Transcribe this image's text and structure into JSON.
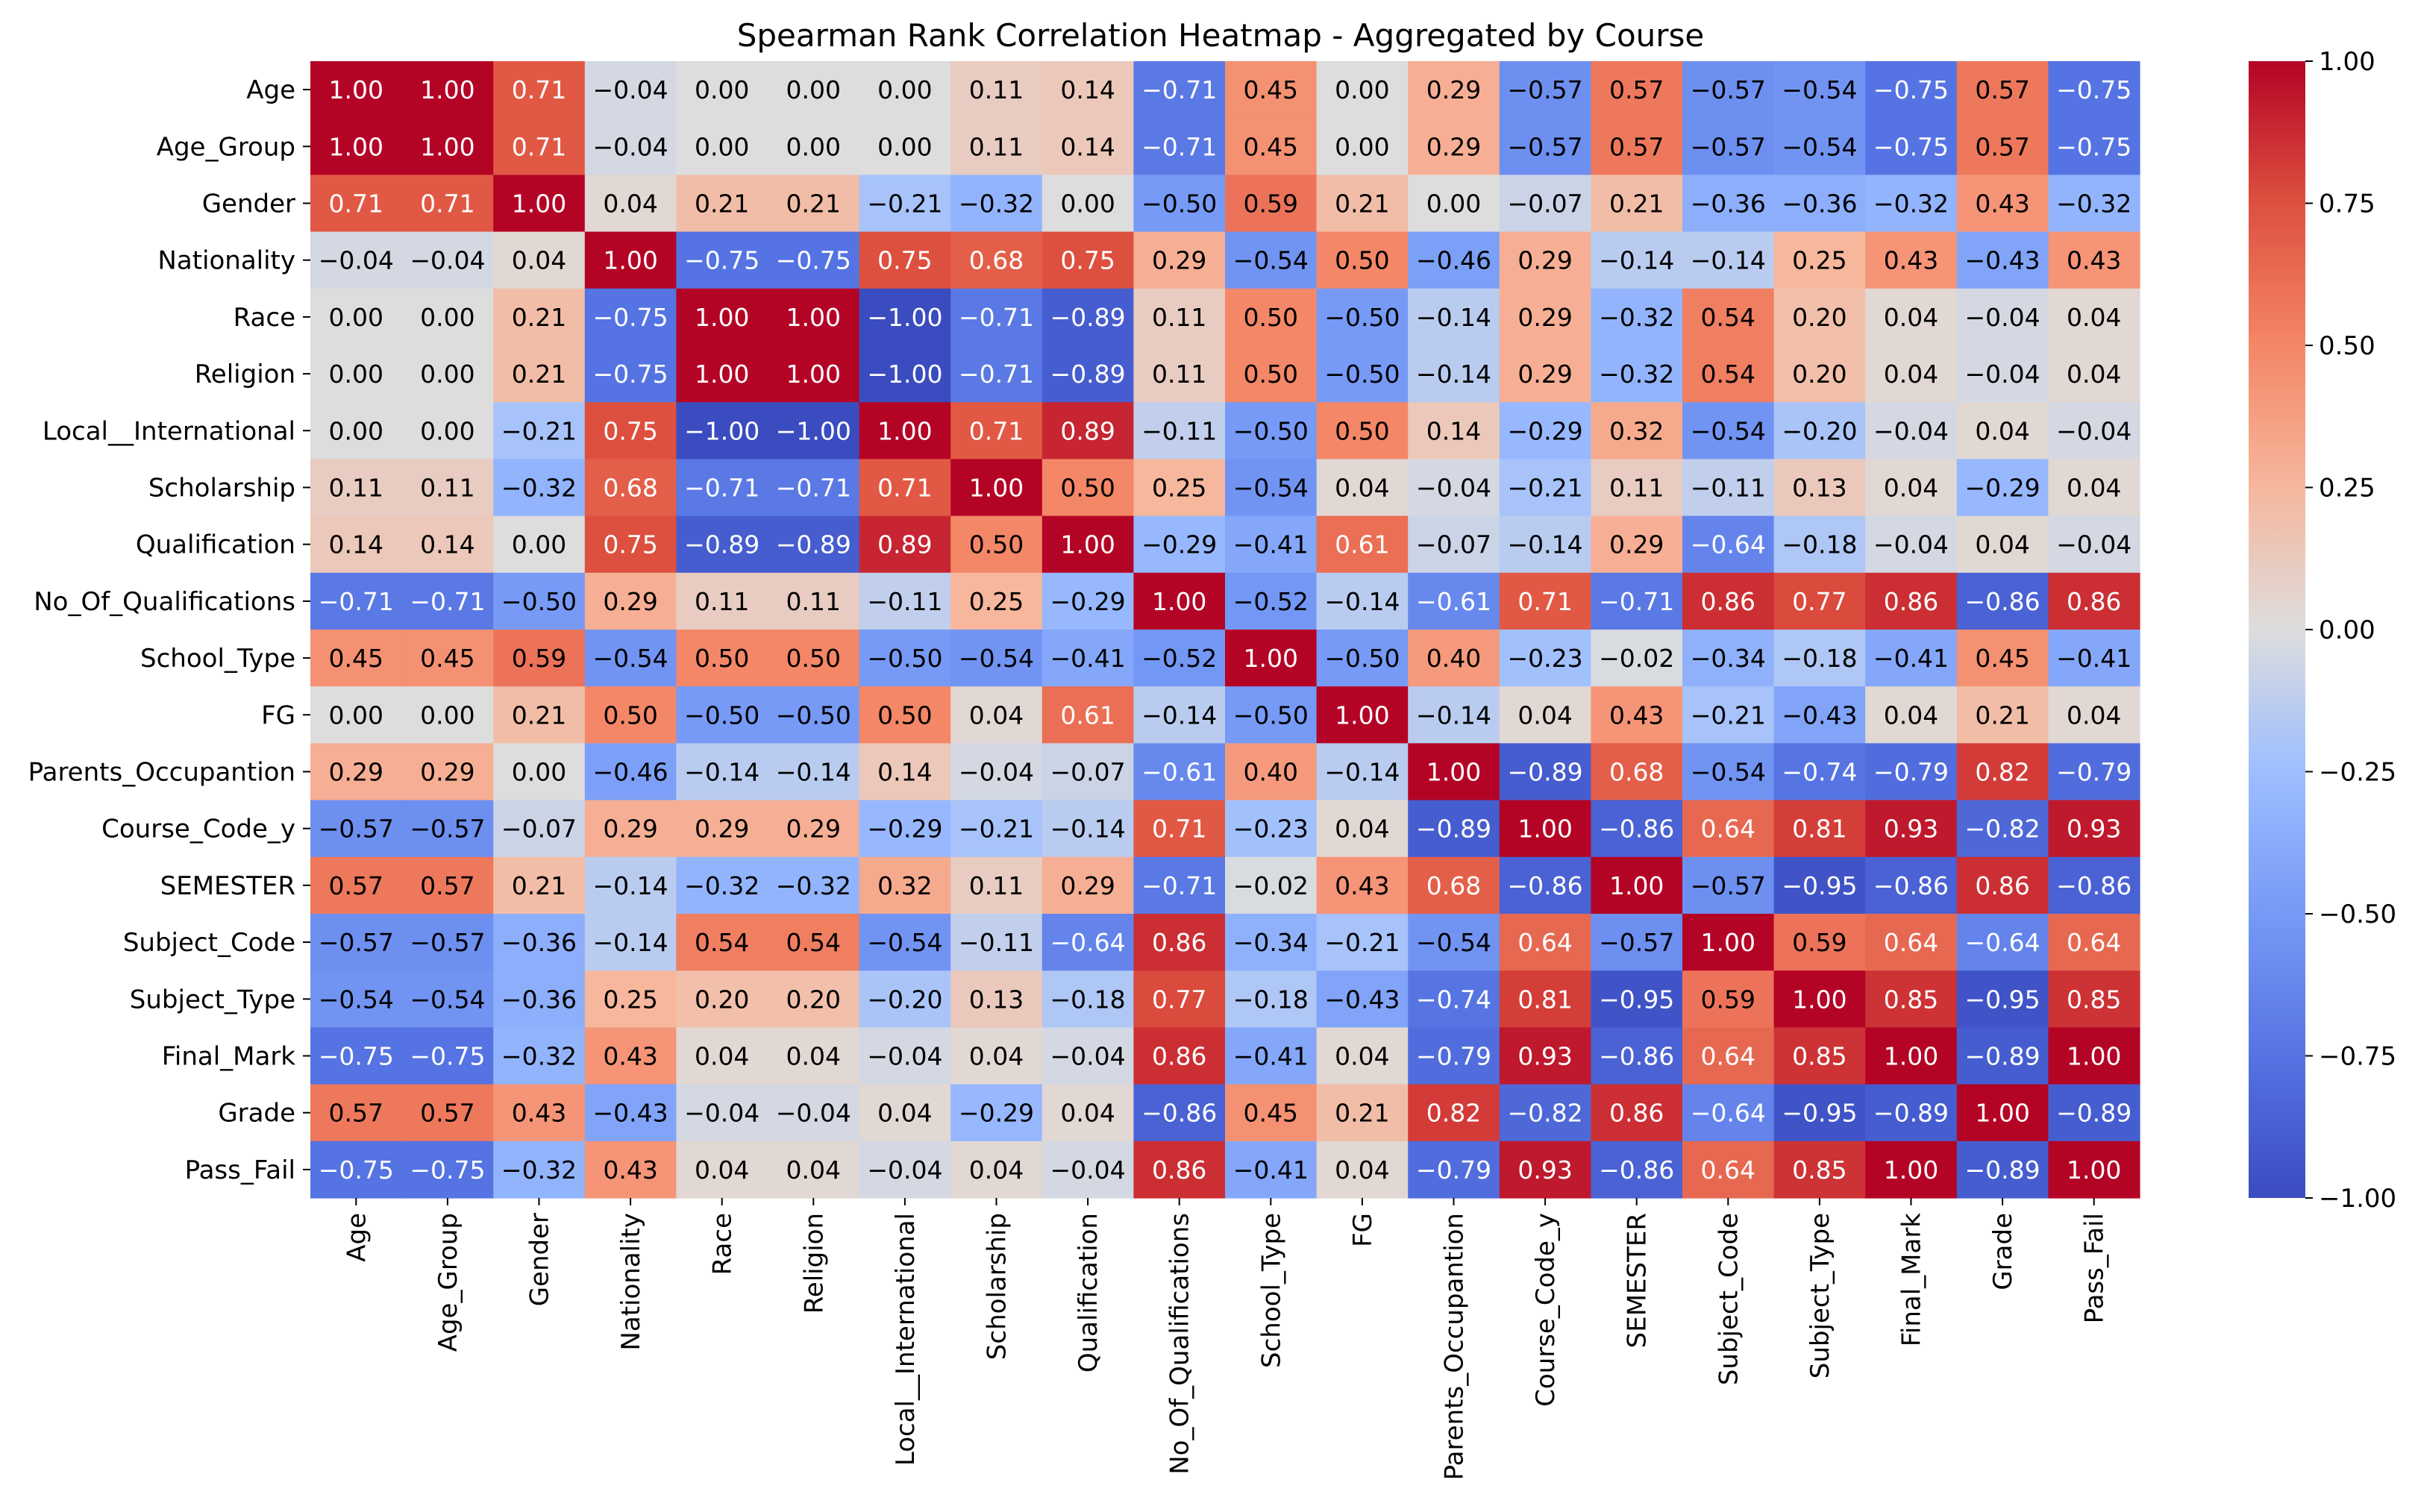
{
  "chart_data": {
    "type": "heatmap",
    "title": "Spearman Rank Correlation Heatmap - Aggregated by Course",
    "labels": [
      "Age",
      "Age_Group",
      "Gender",
      "Nationality",
      "Race",
      "Religion",
      "Local__International",
      "Scholarship",
      "Qualification",
      "No_Of_Qualifications",
      "School_Type",
      "FG",
      "Parents_Occupantion",
      "Course_Code_y",
      "SEMESTER",
      "Subject_Code",
      "Subject_Type",
      "Final_Mark",
      "Grade",
      "Pass_Fail"
    ],
    "matrix": [
      [
        1.0,
        1.0,
        0.71,
        -0.04,
        0.0,
        0.0,
        0.0,
        0.11,
        0.14,
        -0.71,
        0.45,
        0.0,
        0.29,
        -0.57,
        0.57,
        -0.57,
        -0.54,
        -0.75,
        0.57,
        -0.75
      ],
      [
        1.0,
        1.0,
        0.71,
        -0.04,
        0.0,
        0.0,
        0.0,
        0.11,
        0.14,
        -0.71,
        0.45,
        0.0,
        0.29,
        -0.57,
        0.57,
        -0.57,
        -0.54,
        -0.75,
        0.57,
        -0.75
      ],
      [
        0.71,
        0.71,
        1.0,
        0.04,
        0.21,
        0.21,
        -0.21,
        -0.32,
        0.0,
        -0.5,
        0.59,
        0.21,
        0.0,
        -0.07,
        0.21,
        -0.36,
        -0.36,
        -0.32,
        0.43,
        -0.32
      ],
      [
        -0.04,
        -0.04,
        0.04,
        1.0,
        -0.75,
        -0.75,
        0.75,
        0.68,
        0.75,
        0.29,
        -0.54,
        0.5,
        -0.46,
        0.29,
        -0.14,
        -0.14,
        0.25,
        0.43,
        -0.43,
        0.43
      ],
      [
        0.0,
        0.0,
        0.21,
        -0.75,
        1.0,
        1.0,
        -1.0,
        -0.71,
        -0.89,
        0.11,
        0.5,
        -0.5,
        -0.14,
        0.29,
        -0.32,
        0.54,
        0.2,
        0.04,
        -0.04,
        0.04
      ],
      [
        0.0,
        0.0,
        0.21,
        -0.75,
        1.0,
        1.0,
        -1.0,
        -0.71,
        -0.89,
        0.11,
        0.5,
        -0.5,
        -0.14,
        0.29,
        -0.32,
        0.54,
        0.2,
        0.04,
        -0.04,
        0.04
      ],
      [
        0.0,
        0.0,
        -0.21,
        0.75,
        -1.0,
        -1.0,
        1.0,
        0.71,
        0.89,
        -0.11,
        -0.5,
        0.5,
        0.14,
        -0.29,
        0.32,
        -0.54,
        -0.2,
        -0.04,
        0.04,
        -0.04
      ],
      [
        0.11,
        0.11,
        -0.32,
        0.68,
        -0.71,
        -0.71,
        0.71,
        1.0,
        0.5,
        0.25,
        -0.54,
        0.04,
        -0.04,
        -0.21,
        0.11,
        -0.11,
        0.13,
        0.04,
        -0.29,
        0.04
      ],
      [
        0.14,
        0.14,
        0.0,
        0.75,
        -0.89,
        -0.89,
        0.89,
        0.5,
        1.0,
        -0.29,
        -0.41,
        0.61,
        -0.07,
        -0.14,
        0.29,
        -0.64,
        -0.18,
        -0.04,
        0.04,
        -0.04
      ],
      [
        -0.71,
        -0.71,
        -0.5,
        0.29,
        0.11,
        0.11,
        -0.11,
        0.25,
        -0.29,
        1.0,
        -0.52,
        -0.14,
        -0.61,
        0.71,
        -0.71,
        0.86,
        0.77,
        0.86,
        -0.86,
        0.86
      ],
      [
        0.45,
        0.45,
        0.59,
        -0.54,
        0.5,
        0.5,
        -0.5,
        -0.54,
        -0.41,
        -0.52,
        1.0,
        -0.5,
        0.4,
        -0.23,
        -0.02,
        -0.34,
        -0.18,
        -0.41,
        0.45,
        -0.41
      ],
      [
        0.0,
        0.0,
        0.21,
        0.5,
        -0.5,
        -0.5,
        0.5,
        0.04,
        0.61,
        -0.14,
        -0.5,
        1.0,
        -0.14,
        0.04,
        0.43,
        -0.21,
        -0.43,
        0.04,
        0.21,
        0.04
      ],
      [
        0.29,
        0.29,
        0.0,
        -0.46,
        -0.14,
        -0.14,
        0.14,
        -0.04,
        -0.07,
        -0.61,
        0.4,
        -0.14,
        1.0,
        -0.89,
        0.68,
        -0.54,
        -0.74,
        -0.79,
        0.82,
        -0.79
      ],
      [
        -0.57,
        -0.57,
        -0.07,
        0.29,
        0.29,
        0.29,
        -0.29,
        -0.21,
        -0.14,
        0.71,
        -0.23,
        0.04,
        -0.89,
        1.0,
        -0.86,
        0.64,
        0.81,
        0.93,
        -0.82,
        0.93
      ],
      [
        0.57,
        0.57,
        0.21,
        -0.14,
        -0.32,
        -0.32,
        0.32,
        0.11,
        0.29,
        -0.71,
        -0.02,
        0.43,
        0.68,
        -0.86,
        1.0,
        -0.57,
        -0.95,
        -0.86,
        0.86,
        -0.86
      ],
      [
        -0.57,
        -0.57,
        -0.36,
        -0.14,
        0.54,
        0.54,
        -0.54,
        -0.11,
        -0.64,
        0.86,
        -0.34,
        -0.21,
        -0.54,
        0.64,
        -0.57,
        1.0,
        0.59,
        0.64,
        -0.64,
        0.64
      ],
      [
        -0.54,
        -0.54,
        -0.36,
        0.25,
        0.2,
        0.2,
        -0.2,
        0.13,
        -0.18,
        0.77,
        -0.18,
        -0.43,
        -0.74,
        0.81,
        -0.95,
        0.59,
        1.0,
        0.85,
        -0.95,
        0.85
      ],
      [
        -0.75,
        -0.75,
        -0.32,
        0.43,
        0.04,
        0.04,
        -0.04,
        0.04,
        -0.04,
        0.86,
        -0.41,
        0.04,
        -0.79,
        0.93,
        -0.86,
        0.64,
        0.85,
        1.0,
        -0.89,
        1.0
      ],
      [
        0.57,
        0.57,
        0.43,
        -0.43,
        -0.04,
        -0.04,
        0.04,
        -0.29,
        0.04,
        -0.86,
        0.45,
        0.21,
        0.82,
        -0.82,
        0.86,
        -0.64,
        -0.95,
        -0.89,
        1.0,
        -0.89
      ],
      [
        -0.75,
        -0.75,
        -0.32,
        0.43,
        0.04,
        0.04,
        -0.04,
        0.04,
        -0.04,
        0.86,
        -0.41,
        0.04,
        -0.79,
        0.93,
        -0.86,
        0.64,
        0.85,
        1.0,
        -0.89,
        1.0
      ]
    ],
    "value_format": "2 decimals, unicode minus",
    "colormap": "coolwarm",
    "vmin": -1.0,
    "vmax": 1.0,
    "colorbar_ticks": [
      1.0,
      0.75,
      0.5,
      0.25,
      0.0,
      -0.25,
      -0.5,
      -0.75,
      -1.0
    ],
    "colorbar_tick_labels": [
      "1.00",
      "0.75",
      "0.50",
      "0.25",
      "0.00",
      "−0.25",
      "−0.50",
      "−0.75",
      "−1.00"
    ],
    "legend": "colorbar-right"
  }
}
